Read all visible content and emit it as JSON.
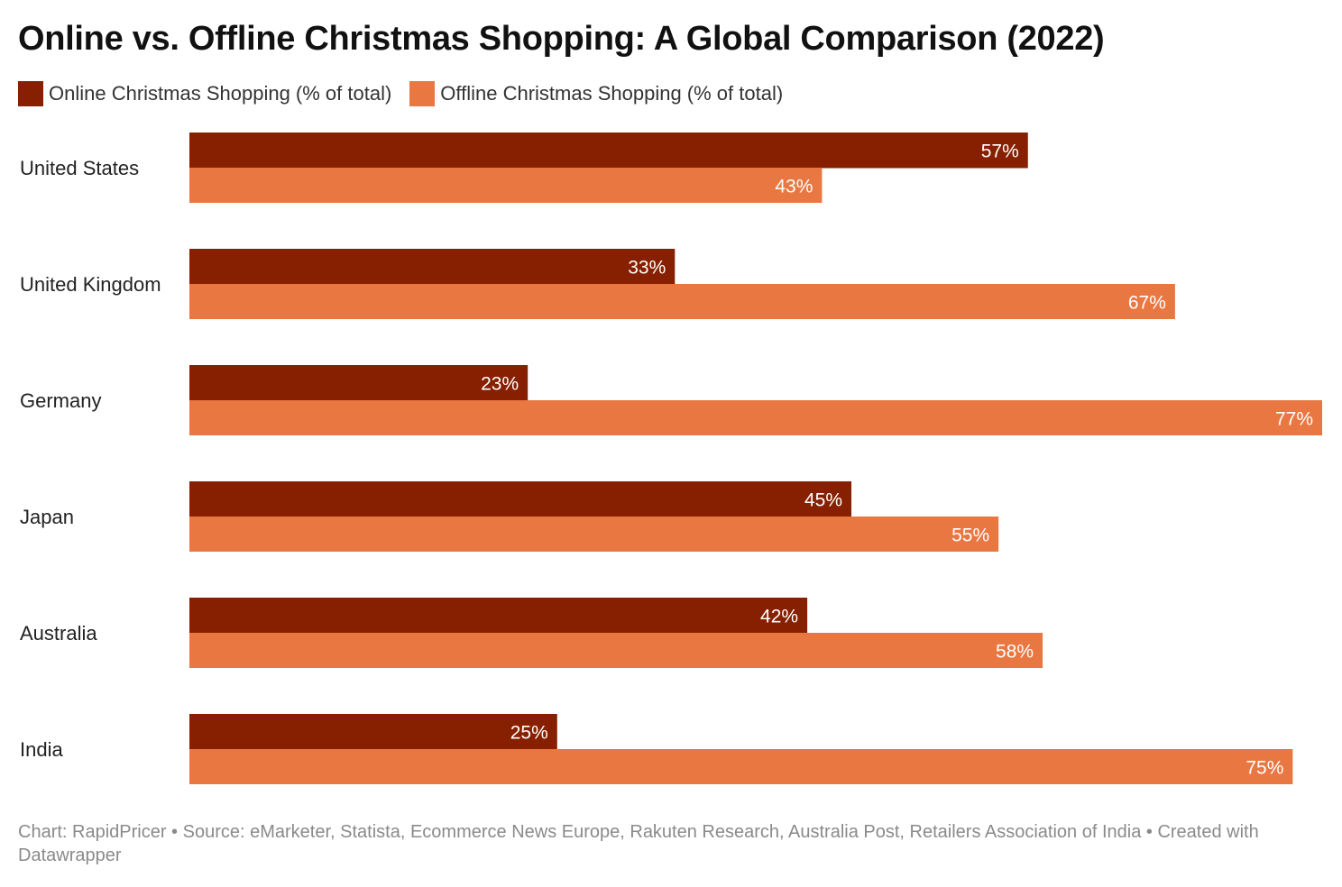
{
  "title": "Online vs. Offline Christmas Shopping: A Global Comparison (2022)",
  "footer": "Chart: RapidPricer • Source: eMarketer, Statista, Ecommerce News Europe, Rakuten Research, Australia Post, Retailers Association of India • Created with Datawrapper",
  "colors": {
    "online": "#872000",
    "offline": "#E97742",
    "label_text": "#ffffff",
    "category_text": "#222222"
  },
  "chart_data": {
    "type": "bar",
    "orientation": "horizontal",
    "categories": [
      "United States",
      "United Kingdom",
      "Germany",
      "Japan",
      "Australia",
      "India"
    ],
    "series": [
      {
        "name": "Online Christmas Shopping (% of total)",
        "values": [
          57,
          33,
          23,
          45,
          42,
          25
        ],
        "labels": [
          "57%",
          "33%",
          "23%",
          "45%",
          "42%",
          "25%"
        ]
      },
      {
        "name": "Offline Christmas Shopping (% of total)",
        "values": [
          43,
          67,
          77,
          55,
          58,
          75
        ],
        "labels": [
          "43%",
          "67%",
          "77%",
          "55%",
          "58%",
          "75%"
        ]
      }
    ],
    "xlim": [
      0,
      77
    ],
    "grid": false,
    "legend_position": "top-left"
  }
}
